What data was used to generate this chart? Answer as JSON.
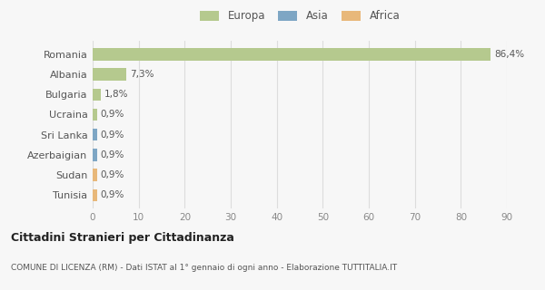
{
  "countries": [
    "Romania",
    "Albania",
    "Bulgaria",
    "Ucraina",
    "Sri Lanka",
    "Azerbaigian",
    "Sudan",
    "Tunisia"
  ],
  "values": [
    86.4,
    7.3,
    1.8,
    0.9,
    0.9,
    0.9,
    0.9,
    0.9
  ],
  "labels": [
    "86,4%",
    "7,3%",
    "1,8%",
    "0,9%",
    "0,9%",
    "0,9%",
    "0,9%",
    "0,9%"
  ],
  "colors": [
    "#b5c98e",
    "#b5c98e",
    "#b5c98e",
    "#b5c98e",
    "#7ea6c4",
    "#7ea6c4",
    "#e8b87a",
    "#e8b87a"
  ],
  "legend_labels": [
    "Europa",
    "Asia",
    "Africa"
  ],
  "legend_colors": [
    "#b5c98e",
    "#7ea6c4",
    "#e8b87a"
  ],
  "title": "Cittadini Stranieri per Cittadinanza",
  "subtitle": "COMUNE DI LICENZA (RM) - Dati ISTAT al 1° gennaio di ogni anno - Elaborazione TUTTITALIA.IT",
  "xlim": [
    0,
    90
  ],
  "xticks": [
    0,
    10,
    20,
    30,
    40,
    50,
    60,
    70,
    80,
    90
  ],
  "bg_color": "#f7f7f7",
  "grid_color": "#dddddd"
}
